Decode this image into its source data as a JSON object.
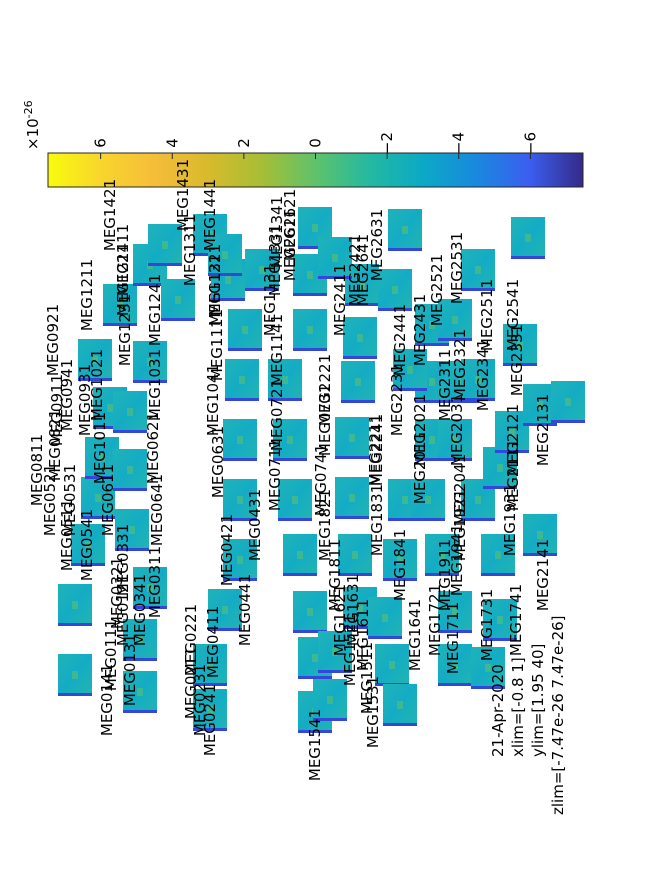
{
  "figure": {
    "date": "21-Apr-2020",
    "xlim_text": "xlim=[-0.8 1]",
    "ylim_text": "ylim=[1.95 40]",
    "zlim_text": "zlim=[-7.47e-26 7.47e-26]"
  },
  "chart_data": {
    "type": "heatmap",
    "title": "",
    "layout": "topoplot-tfr",
    "xlim": [
      -0.8,
      1
    ],
    "ylim": [
      1.95,
      40
    ],
    "zlim": [
      -7.47e-26,
      7.47e-26
    ],
    "colormap": "parula",
    "colorbar": {
      "exponent_text": "×10",
      "exponent_power": "-26",
      "ticks": [
        6,
        4,
        2,
        0,
        -2,
        -4,
        -6
      ],
      "tick_labels": [
        "6",
        "4",
        "2",
        "0",
        "−2",
        "−4",
        "−6"
      ],
      "range": [
        -7.47,
        7.47
      ]
    },
    "sensors": [
      {
        "label": "MEG0111"
      },
      {
        "label": "MEG0121"
      },
      {
        "label": "MEG0131"
      },
      {
        "label": "MEG0141"
      },
      {
        "label": "MEG0211"
      },
      {
        "label": "MEG0221"
      },
      {
        "label": "MEG0231"
      },
      {
        "label": "MEG0241"
      },
      {
        "label": "MEG0311"
      },
      {
        "label": "MEG0321"
      },
      {
        "label": "MEG0331"
      },
      {
        "label": "MEG0341"
      },
      {
        "label": "MEG0411"
      },
      {
        "label": "MEG0421"
      },
      {
        "label": "MEG0431"
      },
      {
        "label": "MEG0441"
      },
      {
        "label": "MEG0511"
      },
      {
        "label": "MEG0521"
      },
      {
        "label": "MEG0531"
      },
      {
        "label": "MEG0541"
      },
      {
        "label": "MEG0611"
      },
      {
        "label": "MEG0621"
      },
      {
        "label": "MEG0631"
      },
      {
        "label": "MEG0641"
      },
      {
        "label": "MEG0711"
      },
      {
        "label": "MEG0721"
      },
      {
        "label": "MEG0731"
      },
      {
        "label": "MEG0741"
      },
      {
        "label": "MEG0811"
      },
      {
        "label": "MEG0821"
      },
      {
        "label": "MEG0911"
      },
      {
        "label": "MEG0921"
      },
      {
        "label": "MEG0931"
      },
      {
        "label": "MEG0941"
      },
      {
        "label": "MEG1011"
      },
      {
        "label": "MEG1021"
      },
      {
        "label": "MEG1031"
      },
      {
        "label": "MEG1041"
      },
      {
        "label": "MEG1111"
      },
      {
        "label": "MEG1121"
      },
      {
        "label": "MEG1131"
      },
      {
        "label": "MEG1141"
      },
      {
        "label": "MEG1211"
      },
      {
        "label": "MEG1221"
      },
      {
        "label": "MEG1231"
      },
      {
        "label": "MEG1241"
      },
      {
        "label": "MEG1311"
      },
      {
        "label": "MEG1321"
      },
      {
        "label": "MEG1331"
      },
      {
        "label": "MEG1341"
      },
      {
        "label": "MEG1411"
      },
      {
        "label": "MEG1421"
      },
      {
        "label": "MEG1431"
      },
      {
        "label": "MEG1441"
      },
      {
        "label": "MEG1511"
      },
      {
        "label": "MEG1521"
      },
      {
        "label": "MEG1531"
      },
      {
        "label": "MEG1541"
      },
      {
        "label": "MEG1611"
      },
      {
        "label": "MEG1621"
      },
      {
        "label": "MEG1631"
      },
      {
        "label": "MEG1641"
      },
      {
        "label": "MEG1711"
      },
      {
        "label": "MEG1721"
      },
      {
        "label": "MEG1731"
      },
      {
        "label": "MEG1741"
      },
      {
        "label": "MEG1811"
      },
      {
        "label": "MEG1821"
      },
      {
        "label": "MEG1831"
      },
      {
        "label": "MEG1841"
      },
      {
        "label": "MEG1911"
      },
      {
        "label": "MEG1921"
      },
      {
        "label": "MEG1931"
      },
      {
        "label": "MEG1941"
      },
      {
        "label": "MEG2011"
      },
      {
        "label": "MEG2021"
      },
      {
        "label": "MEG2031"
      },
      {
        "label": "MEG2041"
      },
      {
        "label": "MEG2111"
      },
      {
        "label": "MEG2121"
      },
      {
        "label": "MEG2131"
      },
      {
        "label": "MEG2141"
      },
      {
        "label": "MEG2211"
      },
      {
        "label": "MEG2221"
      },
      {
        "label": "MEG2231"
      },
      {
        "label": "MEG2241"
      },
      {
        "label": "MEG2311"
      },
      {
        "label": "MEG2321"
      },
      {
        "label": "MEG2331"
      },
      {
        "label": "MEG2341"
      },
      {
        "label": "MEG2411"
      },
      {
        "label": "MEG2421"
      },
      {
        "label": "MEG2431"
      },
      {
        "label": "MEG2441"
      },
      {
        "label": "MEG2511"
      },
      {
        "label": "MEG2521"
      },
      {
        "label": "MEG2531"
      },
      {
        "label": "MEG2541"
      },
      {
        "label": "MEG2611"
      },
      {
        "label": "MEG2621"
      },
      {
        "label": "MEG2631"
      },
      {
        "label": "MEG2641"
      }
    ]
  }
}
